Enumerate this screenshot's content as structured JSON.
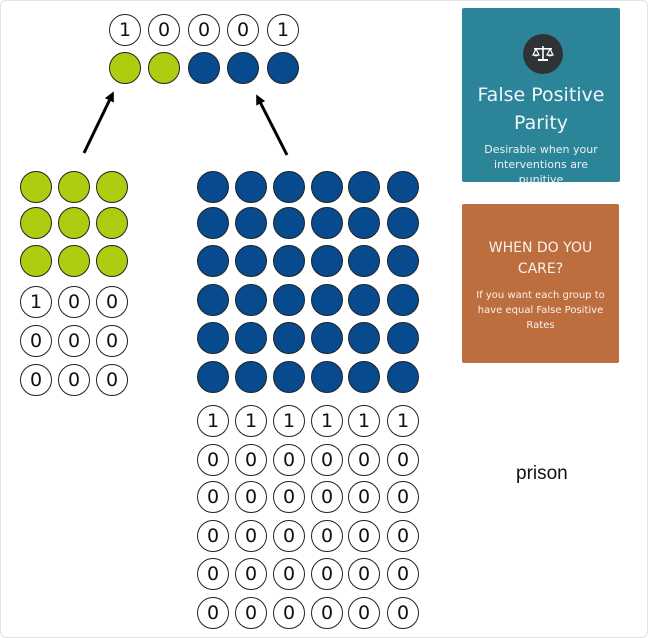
{
  "colors": {
    "green": "#b0cc10",
    "navy": "#084a8e",
    "teal_card": "#2c8498",
    "orange_card": "#bc6e3f"
  },
  "top_row": {
    "labels": [
      "1",
      "0",
      "0",
      "0",
      "1"
    ],
    "dots": [
      "green",
      "green",
      "navy",
      "navy",
      "navy"
    ]
  },
  "left_group": {
    "color": "green",
    "dot_count": 9,
    "labels": [
      "1",
      "0",
      "0",
      "0",
      "0",
      "0",
      "0",
      "0",
      "0"
    ]
  },
  "right_group": {
    "color": "navy",
    "dot_count": 36,
    "labels": [
      "1",
      "1",
      "1",
      "1",
      "1",
      "1",
      "0",
      "0",
      "0",
      "0",
      "0",
      "0",
      "0",
      "0",
      "0",
      "0",
      "0",
      "0",
      "0",
      "0",
      "0",
      "0",
      "0",
      "0",
      "0",
      "0",
      "0",
      "0",
      "0",
      "0",
      "0",
      "0",
      "0",
      "0",
      "0",
      "0"
    ]
  },
  "card_fpp": {
    "icon": "balance-scale-icon",
    "title": "False Positive Parity",
    "subtitle": "Desirable when your interventions are punitive"
  },
  "card_care": {
    "title": "WHEN DO YOU CARE?",
    "subtitle": "If you want each group to have equal False Positive Rates"
  },
  "caption": "prison"
}
